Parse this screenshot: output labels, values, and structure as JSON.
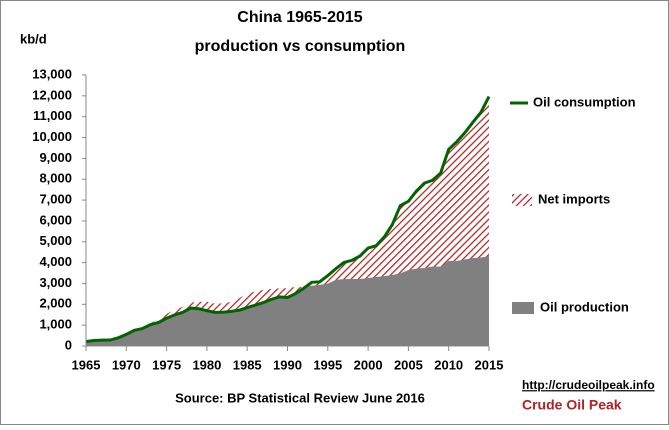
{
  "chart_data": {
    "type": "area",
    "title": "China 1965-2015",
    "subtitle": "production vs consumption",
    "y_axis_label": "kb/d",
    "source": "Source: BP Statistical Review  June 2016",
    "watermark_url": "http://crudeoilpeak.info",
    "watermark_name": "Crude Oil Peak",
    "net_imports_label": "Net imports",
    "hatch_color": "#b22222",
    "x": [
      1965,
      1966,
      1967,
      1968,
      1969,
      1970,
      1971,
      1972,
      1973,
      1974,
      1975,
      1976,
      1977,
      1978,
      1979,
      1980,
      1981,
      1982,
      1983,
      1984,
      1985,
      1986,
      1987,
      1988,
      1989,
      1990,
      1991,
      1992,
      1993,
      1994,
      1995,
      1996,
      1997,
      1998,
      1999,
      2000,
      2001,
      2002,
      2003,
      2004,
      2005,
      2006,
      2007,
      2008,
      2009,
      2010,
      2011,
      2012,
      2013,
      2014,
      2015
    ],
    "series": [
      {
        "name": "Oil production",
        "color": "#808080",
        "values": [
          227,
          292,
          280,
          305,
          437,
          616,
          789,
          901,
          1090,
          1315,
          1543,
          1743,
          1874,
          2083,
          2122,
          2122,
          2031,
          2045,
          2123,
          2295,
          2508,
          2621,
          2690,
          2741,
          2764,
          2778,
          2828,
          2845,
          2892,
          2934,
          2993,
          3170,
          3211,
          3212,
          3213,
          3257,
          3310,
          3351,
          3406,
          3486,
          3642,
          3711,
          3742,
          3814,
          3805,
          4077,
          4074,
          4155,
          4216,
          4246,
          4309
        ]
      },
      {
        "name": "Oil consumption",
        "color": "#006400",
        "values": [
          216,
          266,
          280,
          285,
          393,
          556,
          752,
          838,
          1022,
          1129,
          1330,
          1493,
          1614,
          1819,
          1785,
          1694,
          1612,
          1617,
          1663,
          1714,
          1843,
          1960,
          2085,
          2237,
          2358,
          2327,
          2514,
          2766,
          3056,
          3078,
          3377,
          3707,
          4007,
          4109,
          4318,
          4697,
          4810,
          5228,
          5818,
          6738,
          6938,
          7437,
          7819,
          7949,
          8295,
          9436,
          9796,
          10230,
          10732,
          11209,
          11968
        ]
      }
    ],
    "xlim": [
      1965,
      2015
    ],
    "xticks": [
      1965,
      1970,
      1975,
      1980,
      1985,
      1990,
      1995,
      2000,
      2005,
      2010,
      2015
    ],
    "ylim": [
      0,
      13000
    ],
    "yticks": [
      0,
      {
        "value": 1000,
        "label": "1,000"
      },
      {
        "value": 2000,
        "label": "2,000"
      },
      {
        "value": 3000,
        "label": "3,000"
      },
      {
        "value": 4000,
        "label": "4,000"
      },
      {
        "value": 5000,
        "label": "5,000"
      },
      {
        "value": 6000,
        "label": "6,000"
      },
      {
        "value": 7000,
        "label": "7,000"
      },
      {
        "value": 8000,
        "label": "8,000"
      },
      {
        "value": 9000,
        "label": "9,000"
      },
      {
        "value": 10000,
        "label": "10,000"
      },
      {
        "value": 11000,
        "label": "11,000"
      },
      {
        "value": 12000,
        "label": "12,000"
      },
      {
        "value": 13000,
        "label": "13,000"
      }
    ]
  }
}
